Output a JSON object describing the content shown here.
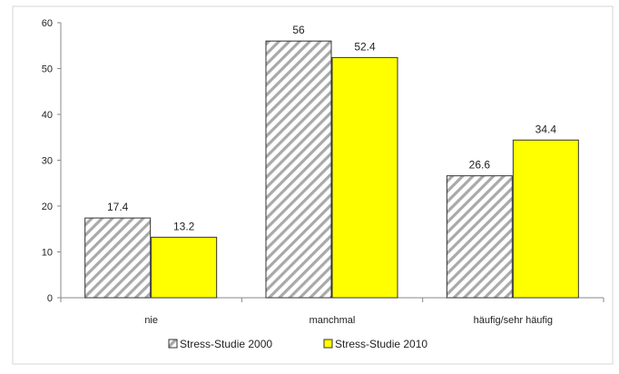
{
  "chart_data": {
    "type": "bar",
    "title": "",
    "xlabel": "",
    "ylabel": "",
    "categories": [
      "nie",
      "manchmal",
      "häufig/sehr häufig"
    ],
    "series": [
      {
        "name": "Stress-Studie 2000",
        "values": [
          17.4,
          56,
          26.6
        ],
        "color": "#c8c8c8",
        "pattern": "diagonal-hatch"
      },
      {
        "name": "Stress-Studie 2010",
        "values": [
          13.2,
          52.4,
          34.4
        ],
        "color": "#ffff00",
        "pattern": "solid"
      }
    ],
    "ylim": [
      0,
      60
    ],
    "yticks": [
      "0",
      "10",
      "20",
      "30",
      "40",
      "50",
      "60"
    ],
    "data_labels": [
      [
        "17.4",
        "56",
        "26.6"
      ],
      [
        "13.2",
        "52.4",
        "34.4"
      ]
    ],
    "grid": false,
    "legend_position": "bottom"
  }
}
